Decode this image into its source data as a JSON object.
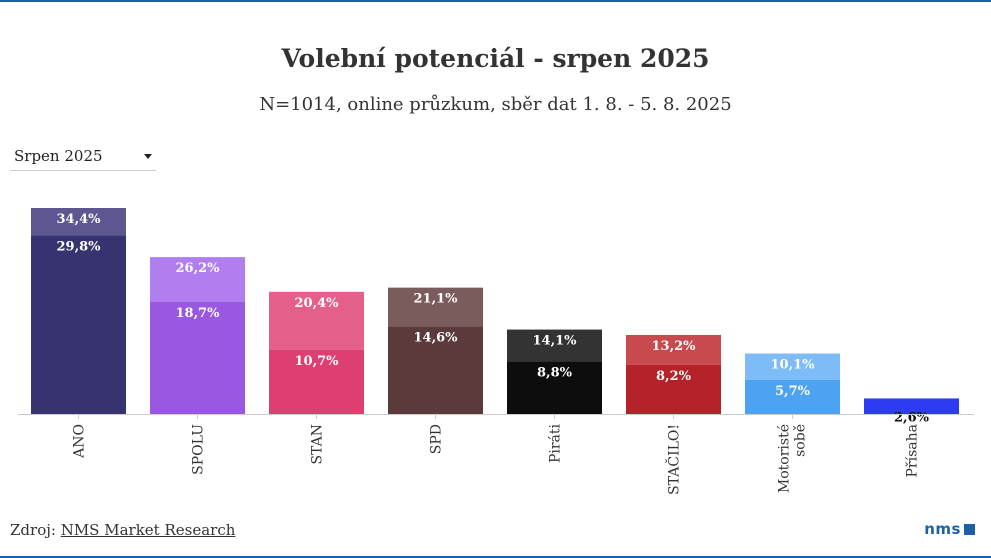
{
  "title": "Volební potenciál - srpen 2025",
  "subtitle": "N=1014, online průzkum, sběr dat 1. 8. - 5. 8. 2025",
  "dropdown": {
    "selected": "Srpen 2025"
  },
  "footer": {
    "source_prefix": "Zdroj: ",
    "source_link": "NMS Market Research",
    "logo": "nms"
  },
  "chart_data": {
    "type": "bar",
    "categories": [
      "ANO",
      "SPOLU",
      "STAN",
      "SPD",
      "Piráti",
      "STAČILO!",
      "Motoristé sobě",
      "Přísaha"
    ],
    "category_lines": [
      [
        "ANO"
      ],
      [
        "SPOLU"
      ],
      [
        "STAN"
      ],
      [
        "SPD"
      ],
      [
        "Piráti"
      ],
      [
        "STAČILO!"
      ],
      [
        "Motoristé",
        "sobě"
      ],
      [
        "Přísaha"
      ]
    ],
    "series": [
      {
        "values": [
          29.8,
          18.7,
          10.7,
          14.6,
          8.8,
          8.2,
          5.7,
          2.6
        ],
        "labels": [
          "29,8%",
          "18,7%",
          "10,7%",
          "14,6%",
          "8,8%",
          "8,2%",
          "5,7%",
          "2,6%"
        ]
      },
      {
        "values": [
          34.4,
          26.2,
          20.4,
          21.1,
          14.1,
          13.2,
          10.1,
          2.6
        ],
        "labels": [
          "34,4%",
          "26,2%",
          "20,4%",
          "21,1%",
          "14,1%",
          "13,2%",
          "10,1%",
          ""
        ]
      }
    ],
    "colors_core": [
      "#373370",
      "#9a58e2",
      "#de3f71",
      "#5a3a3a",
      "#0d0d0d",
      "#b5222a",
      "#4da3f1",
      "#2d3cf2"
    ],
    "colors_potential": [
      "#5c5790",
      "#b07eee",
      "#e4608a",
      "#7a5c5c",
      "#333333",
      "#c84a4f",
      "#7dbcf6",
      "#4d57f4"
    ],
    "ylim": [
      0,
      34.4
    ],
    "grid": false
  }
}
